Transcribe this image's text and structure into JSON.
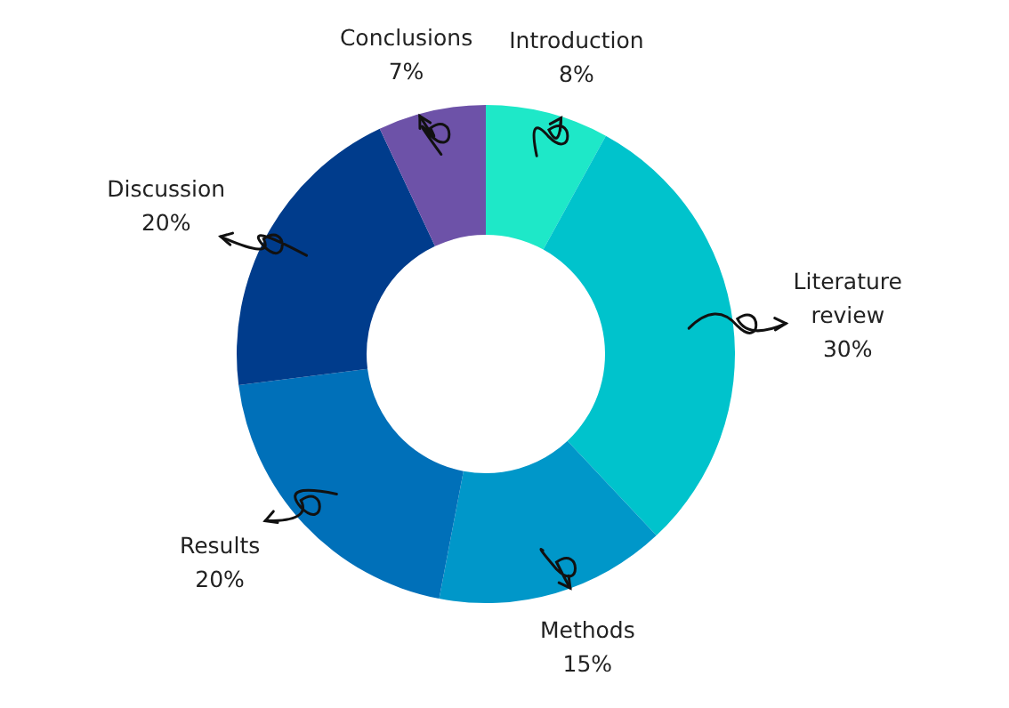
{
  "chart_data": {
    "type": "donut",
    "categories": [
      "Introduction",
      "Literature review",
      "Methods",
      "Results",
      "Discussion",
      "Conclusions"
    ],
    "values": [
      8,
      30,
      15,
      20,
      20,
      7
    ],
    "value_labels": [
      "8%",
      "30%",
      "15%",
      "20%",
      "20%",
      "7%"
    ],
    "colors": [
      "#1ee8c8",
      "#00c3cc",
      "#0097c9",
      "#0070b9",
      "#003c8c",
      "#6d52a8"
    ]
  }
}
